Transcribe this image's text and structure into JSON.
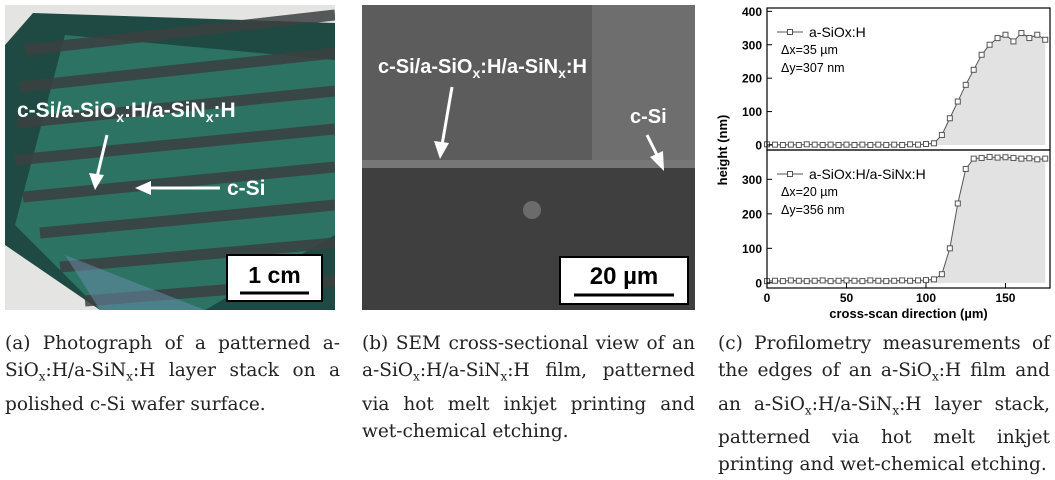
{
  "figures": [
    {
      "image_labels": [
        [
          "c-Si/a-SiO",
          "x",
          ":H/a-SiN",
          "x",
          ":H"
        ],
        [
          "c-Si"
        ]
      ],
      "scale_bar": "1 cm",
      "caption": [
        "(a) Photograph of a patterned a-SiO",
        "x",
        ":H/a-SiN",
        "x",
        ":H layer stack on a polished c-Si wafer surface."
      ]
    },
    {
      "image_labels": [
        [
          "c-Si/a-SiO",
          "x",
          ":H/a-SiN",
          "x",
          ":H"
        ],
        [
          "c-Si"
        ]
      ],
      "scale_bar": "20 µm",
      "caption": [
        "(b) SEM cross-sectional view of an a-SiO",
        "x",
        ":H/a-SiN",
        "x",
        ":H film, patterned via hot melt inkjet printing and wet-chemical etching."
      ]
    },
    {
      "caption": [
        "(c) Profilometry measurements of the edges of an a-SiO",
        "x",
        ":H film and an a-SiO",
        "x",
        ":H/a-SiN",
        "x",
        ":H layer stack, patterned via hot melt inkjet printing and wet-chemical etching."
      ]
    }
  ],
  "chart_data": [
    {
      "type": "line",
      "ylabel": "height (nm)",
      "x": [
        0,
        5,
        10,
        15,
        20,
        25,
        30,
        35,
        40,
        45,
        50,
        55,
        60,
        65,
        70,
        75,
        80,
        85,
        90,
        95,
        100,
        105,
        110,
        115,
        120,
        125,
        130,
        135,
        140,
        145,
        150,
        155,
        160,
        165,
        170,
        175
      ],
      "series": [
        {
          "name": "a-SiOx:H",
          "color": "#555555",
          "values": [
            2,
            1,
            0,
            1,
            0,
            2,
            1,
            0,
            1,
            0,
            1,
            0,
            1,
            0,
            1,
            0,
            1,
            0,
            2,
            1,
            3,
            5,
            30,
            80,
            130,
            180,
            225,
            270,
            300,
            320,
            330,
            310,
            335,
            320,
            330,
            315
          ]
        }
      ],
      "annotations": [
        "Δx=35 µm",
        "Δy=307 nm"
      ],
      "xlim": [
        0,
        178
      ],
      "ylim": [
        -15,
        410
      ],
      "yticks": [
        0,
        100,
        200,
        300,
        400
      ]
    },
    {
      "type": "line",
      "xlabel": "cross-scan direction (µm)",
      "x": [
        0,
        5,
        10,
        15,
        20,
        25,
        30,
        35,
        40,
        45,
        50,
        55,
        60,
        65,
        70,
        75,
        80,
        85,
        90,
        95,
        100,
        105,
        110,
        115,
        120,
        125,
        130,
        135,
        140,
        145,
        150,
        155,
        160,
        165,
        170,
        175
      ],
      "series": [
        {
          "name": "a-SiOx:H/a-SiNx:H",
          "color": "#555555",
          "values": [
            5,
            6,
            5,
            7,
            6,
            5,
            6,
            7,
            5,
            6,
            7,
            6,
            5,
            7,
            6,
            5,
            6,
            7,
            6,
            7,
            8,
            10,
            25,
            100,
            230,
            330,
            360,
            362,
            365,
            363,
            364,
            362,
            360,
            361,
            358,
            360
          ]
        }
      ],
      "annotations": [
        "Δx=20 µm",
        "Δy=356 nm"
      ],
      "xlim": [
        0,
        178
      ],
      "xticks": [
        0,
        50,
        100,
        150
      ],
      "ylim": [
        -15,
        385
      ],
      "yticks": [
        0,
        100,
        200,
        300
      ]
    }
  ]
}
